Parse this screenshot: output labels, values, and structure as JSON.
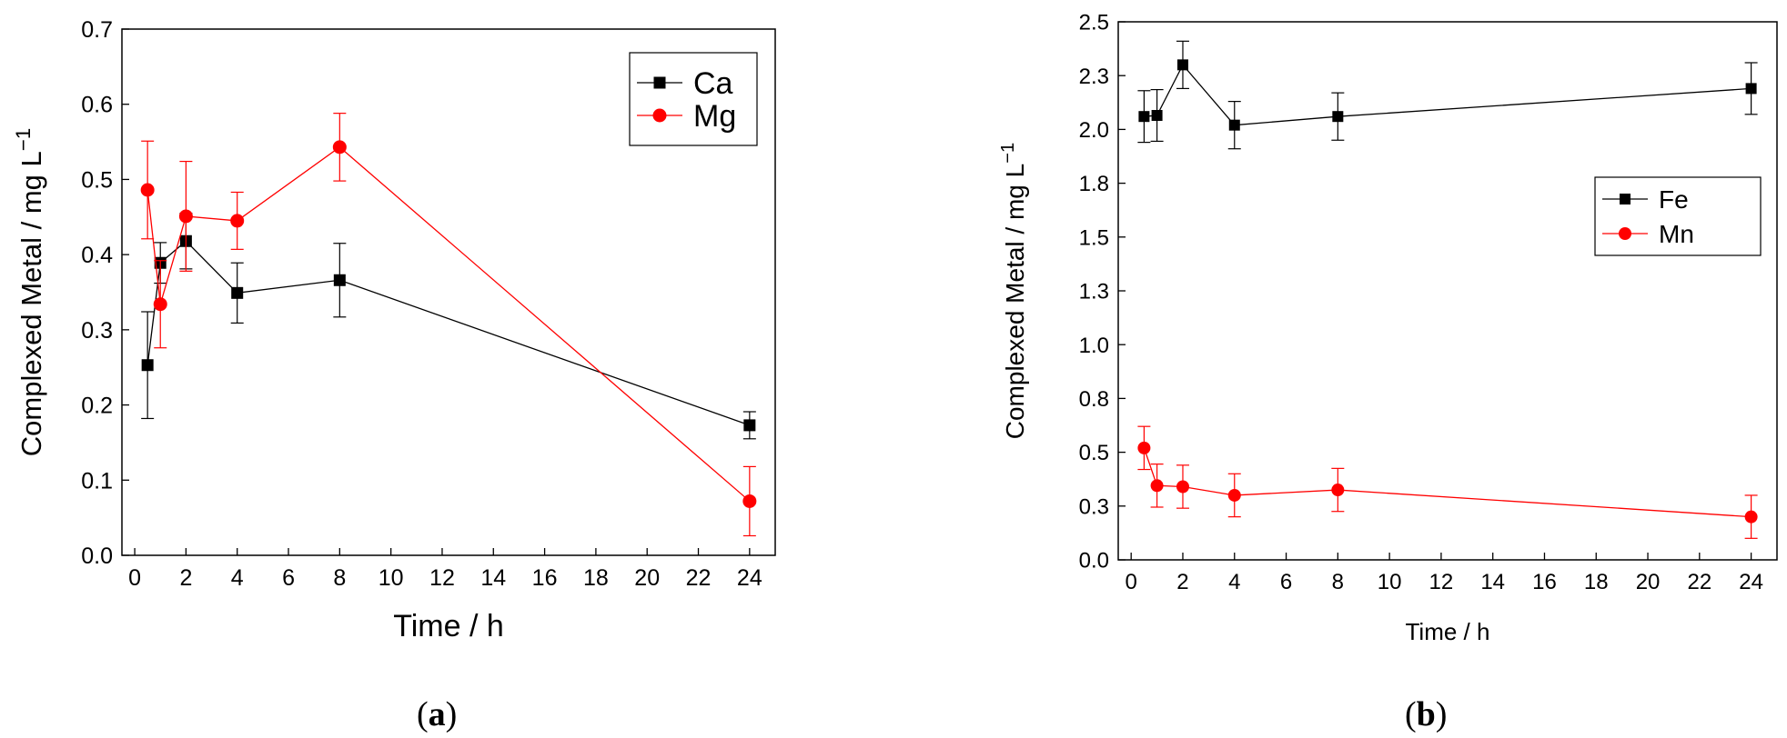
{
  "captions": {
    "a": "a",
    "b": "b"
  },
  "chart_data": [
    {
      "type": "line",
      "panel": "(a)",
      "xlabel": "Time / h",
      "ylabel": "Complexed Metal / mg L",
      "ylabel_sup": "−1",
      "xlim": [
        -0.5,
        25
      ],
      "ylim": [
        0.0,
        0.7
      ],
      "xticks": [
        0,
        2,
        4,
        6,
        8,
        10,
        12,
        14,
        16,
        18,
        20,
        22,
        24
      ],
      "xticklabels": [
        "0",
        "2",
        "4",
        "6",
        "8",
        "10",
        "12",
        "14",
        "16",
        "18",
        "20",
        "22",
        "24"
      ],
      "yticks": [
        0.0,
        0.1,
        0.2,
        0.3,
        0.4,
        0.5,
        0.6,
        0.7
      ],
      "yticklabels": [
        "0.0",
        "0.1",
        "0.2",
        "0.3",
        "0.4",
        "0.5",
        "0.6",
        "0.7"
      ],
      "legend_position": "top-right",
      "grid": false,
      "series": [
        {
          "name": "Ca",
          "color": "#000000",
          "marker": "square",
          "x": [
            0.5,
            1,
            2,
            4,
            8,
            24
          ],
          "y": [
            0.253,
            0.389,
            0.418,
            0.349,
            0.366,
            0.173
          ],
          "err": [
            0.071,
            0.027,
            0.037,
            0.04,
            0.049,
            0.018
          ]
        },
        {
          "name": "Mg",
          "color": "#ff0000",
          "marker": "circle",
          "x": [
            0.5,
            1,
            2,
            4,
            8,
            24
          ],
          "y": [
            0.486,
            0.334,
            0.451,
            0.445,
            0.543,
            0.072
          ],
          "err": [
            0.065,
            0.058,
            0.073,
            0.038,
            0.045,
            0.046
          ]
        }
      ]
    },
    {
      "type": "line",
      "panel": "(b)",
      "xlabel": "Time / h",
      "ylabel": "Complexed Metal / mg L",
      "ylabel_sup": "−1",
      "xlim": [
        -0.5,
        25
      ],
      "ylim": [
        0.0,
        2.5
      ],
      "xticks": [
        0,
        2,
        4,
        6,
        8,
        10,
        12,
        14,
        16,
        18,
        20,
        22,
        24
      ],
      "xticklabels": [
        "0",
        "2",
        "4",
        "6",
        "8",
        "10",
        "12",
        "14",
        "16",
        "18",
        "20",
        "22",
        "24"
      ],
      "yticks": [
        0.0,
        0.25,
        0.5,
        0.75,
        1.0,
        1.25,
        1.5,
        1.75,
        2.0,
        2.25,
        2.5
      ],
      "yticklabels": [
        "0.0",
        "0.3",
        "0.5",
        "0.8",
        "1.0",
        "1.3",
        "1.5",
        "1.8",
        "2.0",
        "2.3",
        "2.5"
      ],
      "legend_position": "center-right",
      "grid": false,
      "series": [
        {
          "name": "Fe",
          "color": "#000000",
          "marker": "square",
          "x": [
            0.5,
            1,
            2,
            4,
            8,
            24
          ],
          "y": [
            2.06,
            2.065,
            2.3,
            2.02,
            2.06,
            2.19
          ],
          "err": [
            0.12,
            0.12,
            0.11,
            0.11,
            0.11,
            0.12
          ]
        },
        {
          "name": "Mn",
          "color": "#ff0000",
          "marker": "circle",
          "x": [
            0.5,
            1,
            2,
            4,
            8,
            24
          ],
          "y": [
            0.52,
            0.345,
            0.34,
            0.3,
            0.325,
            0.2
          ],
          "err": [
            0.1,
            0.1,
            0.1,
            0.1,
            0.1,
            0.1
          ]
        }
      ]
    }
  ]
}
